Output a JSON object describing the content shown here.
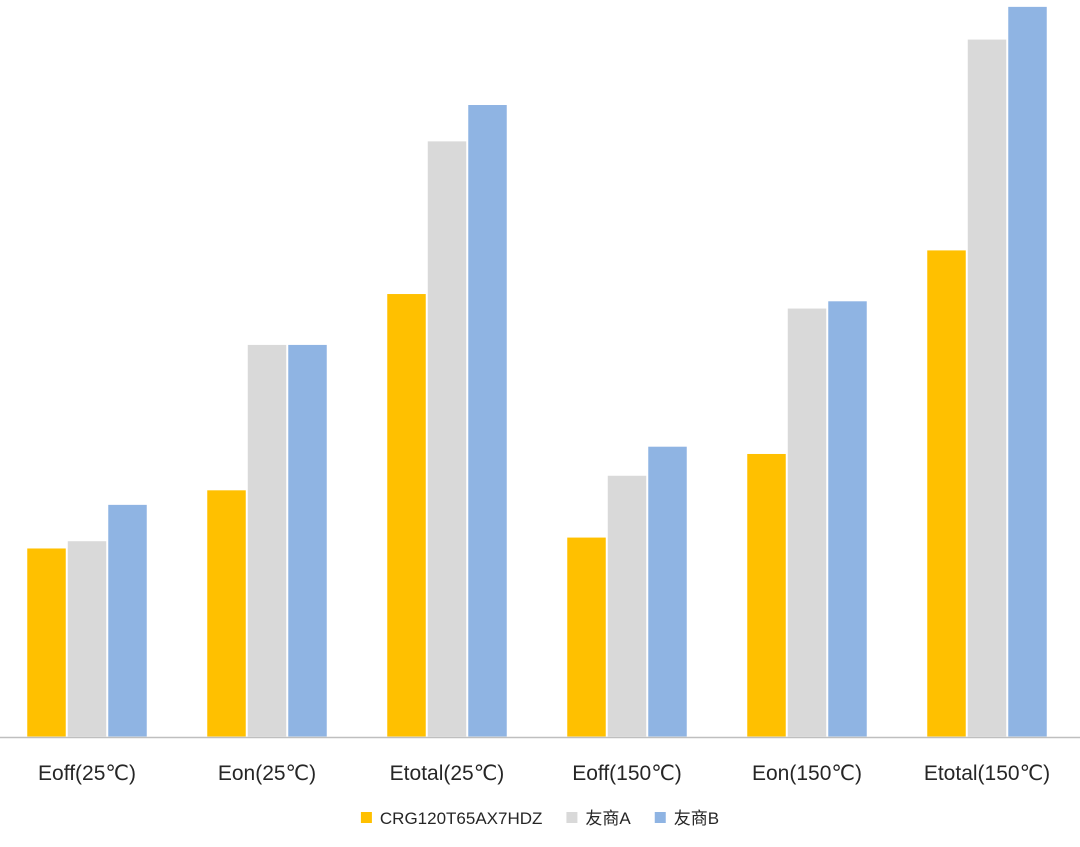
{
  "chart_data": {
    "type": "bar",
    "title": "",
    "xlabel": "",
    "ylabel": "",
    "ylim": [
      0,
      100
    ],
    "grid": false,
    "legend_position": "bottom",
    "categories": [
      "Eoff(25℃)",
      "Eon(25℃)",
      "Etotal(25℃)",
      "Eoff(150℃)",
      "Eon(150℃)",
      "Etotal(150℃)"
    ],
    "series": [
      {
        "name": "CRG120T65AX7HDZ",
        "color": "#FFC000",
        "values": [
          26,
          34,
          61,
          27.5,
          39,
          67
        ]
      },
      {
        "name": "友商A",
        "color": "#D9D9D9",
        "values": [
          27,
          54,
          82,
          36,
          59,
          96
        ]
      },
      {
        "name": "友商B",
        "color": "#8FB4E3",
        "values": [
          32,
          54,
          87,
          40,
          60,
          100.5
        ]
      }
    ]
  }
}
